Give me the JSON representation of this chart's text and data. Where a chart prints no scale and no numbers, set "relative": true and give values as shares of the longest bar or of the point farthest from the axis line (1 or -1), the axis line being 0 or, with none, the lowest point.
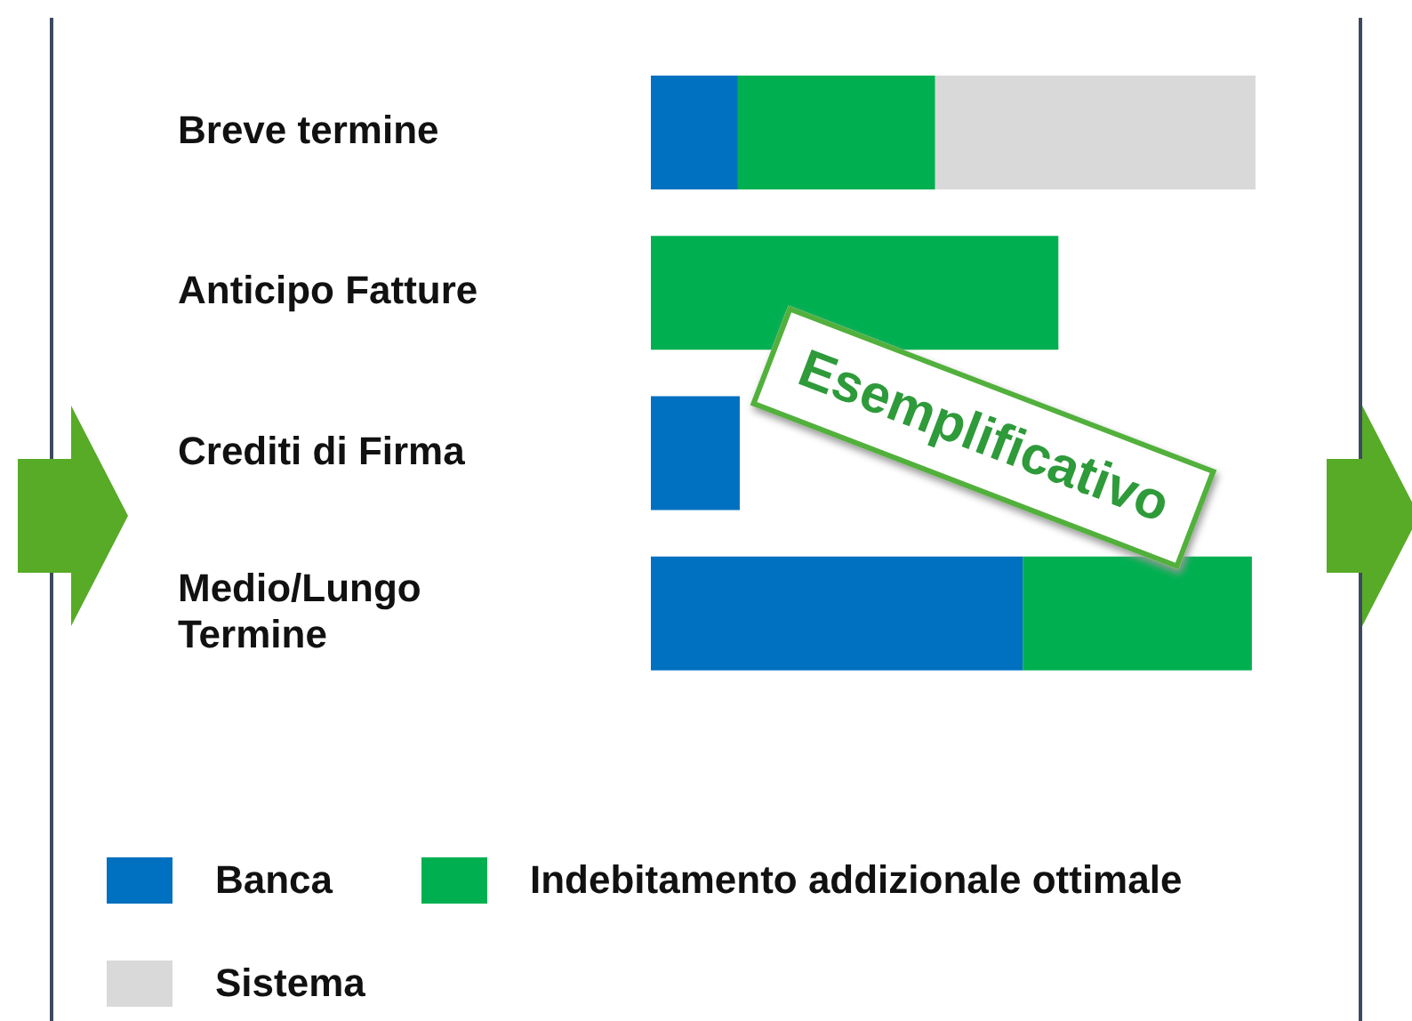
{
  "chart_data": {
    "type": "bar",
    "orientation": "horizontal",
    "stacked": true,
    "relative": true,
    "legend": "bottom",
    "categories": [
      "Breve termine",
      "Anticipo Fatture",
      "Crediti di Firma",
      "Medio/Lungo Termine"
    ],
    "series": [
      {
        "name": "Banca",
        "color": "#0070c0",
        "values": [
          0.144,
          null,
          0.147,
          0.615
        ]
      },
      {
        "name": "Indebitamento addizionale ottimale",
        "color": "#00b050",
        "values": [
          0.326,
          0.674,
          null,
          0.379
        ]
      },
      {
        "name": "Sistema",
        "color": "#d9d9d9",
        "values": [
          0.53,
          null,
          null,
          null
        ]
      }
    ],
    "annotations": [
      "Esemplificativo"
    ]
  }
}
